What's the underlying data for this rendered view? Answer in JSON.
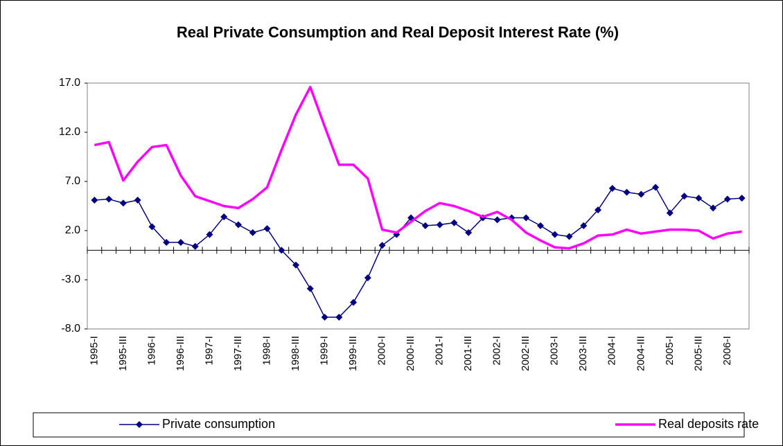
{
  "chart_data": {
    "type": "line",
    "title": "Real Private Consumption and Real Deposit Interest Rate (%)",
    "categories": [
      "1995-I",
      null,
      "1995-III",
      null,
      "1996-I",
      null,
      "1996-III",
      null,
      "1997-I",
      null,
      "1997-III",
      null,
      "1998-I",
      null,
      "1998-III",
      null,
      "1999-I",
      null,
      "1999-III",
      null,
      "2000-I",
      null,
      "2000-III",
      null,
      "2001-I",
      null,
      "2001-III",
      null,
      "2002-I",
      null,
      "2002-III",
      null,
      "2003-I",
      null,
      "2003-III",
      null,
      "2004-I",
      null,
      "2004-III",
      null,
      "2005-I",
      null,
      "2005-III",
      null,
      "2006-I",
      null
    ],
    "series": [
      {
        "name": "Private consumption",
        "color": "#000080",
        "marker": "diamond",
        "values": [
          5.1,
          5.2,
          4.8,
          5.1,
          2.4,
          0.8,
          0.8,
          0.4,
          1.6,
          3.4,
          2.6,
          1.8,
          2.2,
          0.0,
          -1.5,
          -3.9,
          -6.8,
          -6.8,
          -5.3,
          -2.8,
          0.5,
          1.6,
          3.3,
          2.5,
          2.6,
          2.8,
          1.8,
          3.3,
          3.1,
          3.3,
          3.3,
          2.5,
          1.6,
          1.4,
          2.5,
          4.1,
          6.3,
          5.9,
          5.7,
          6.4,
          3.8,
          5.5,
          5.3,
          4.3,
          5.2,
          5.3
        ]
      },
      {
        "name": "Real deposits rate",
        "color": "#ff00ff",
        "values": [
          10.7,
          11.0,
          7.1,
          9.0,
          10.5,
          10.7,
          7.6,
          5.5,
          5.0,
          4.5,
          4.3,
          5.2,
          6.4,
          10.2,
          13.8,
          16.6,
          12.6,
          8.7,
          8.7,
          7.3,
          2.1,
          1.8,
          2.9,
          4.0,
          4.8,
          4.5,
          4.0,
          3.4,
          3.9,
          3.1,
          1.8,
          1.0,
          0.3,
          0.2,
          0.7,
          1.5,
          1.6,
          2.1,
          1.7,
          1.9,
          2.1,
          2.1,
          2.0,
          1.2,
          1.7,
          1.9
        ]
      }
    ],
    "ylim": [
      -8,
      17
    ],
    "yticks": [
      {
        "value": -8,
        "label": "-8.0"
      },
      {
        "value": -3,
        "label": "-3.0"
      },
      {
        "value": 2,
        "label": "2.0"
      },
      {
        "value": 7,
        "label": "7.0"
      },
      {
        "value": 12,
        "label": "12.0"
      },
      {
        "value": 17,
        "label": "17.0"
      }
    ],
    "legend": "bottom"
  }
}
